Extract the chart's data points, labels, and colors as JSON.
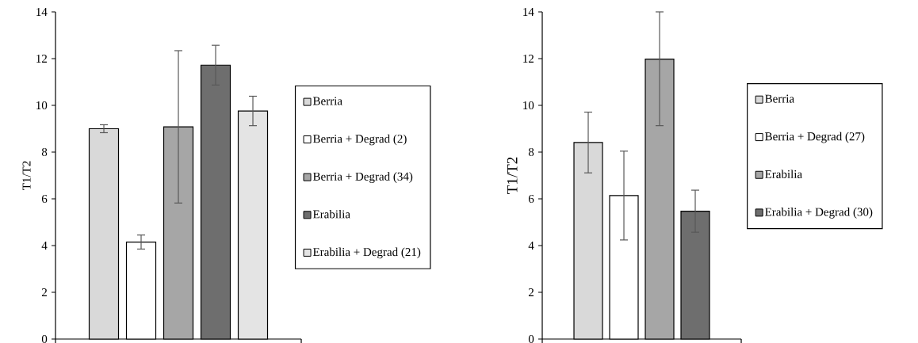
{
  "chart_data": [
    {
      "type": "bar",
      "ylabel": "T1/T2",
      "categories": [
        null
      ],
      "ylim": [
        0,
        14
      ],
      "yticks": [
        0,
        2,
        4,
        6,
        8,
        10,
        12,
        14
      ],
      "grid": false,
      "legend": "right",
      "tick_labels": "y",
      "series": [
        {
          "name": "Berria",
          "color": "#d9d9d9",
          "values": [
            9.0
          ],
          "errors": [
            0.17
          ]
        },
        {
          "name": "Berria + Degrad (2)",
          "color": "#ffffff",
          "values": [
            4.15
          ],
          "errors": [
            0.3
          ]
        },
        {
          "name": "Berria + Degrad (34)",
          "color": "#a6a6a6",
          "values": [
            9.08
          ],
          "errors": [
            3.26
          ]
        },
        {
          "name": "Erabilia",
          "color": "#6e6e6e",
          "values": [
            11.72
          ],
          "errors": [
            0.85
          ]
        },
        {
          "name": "Erabilia + Degrad (21)",
          "color": "#e4e4e4",
          "values": [
            9.76
          ],
          "errors": [
            0.63
          ]
        }
      ]
    },
    {
      "type": "bar",
      "ylabel": "T1/T2",
      "categories": [
        null
      ],
      "ylim": [
        0,
        14
      ],
      "yticks": [
        0,
        2,
        4,
        6,
        8,
        10,
        12,
        14
      ],
      "grid": false,
      "legend": "right",
      "tick_labels": "y",
      "series": [
        {
          "name": "Berria",
          "color": "#d9d9d9",
          "values": [
            8.41
          ],
          "errors": [
            1.3
          ]
        },
        {
          "name": "Berria + Degrad (27)",
          "color": "#ffffff",
          "values": [
            6.14
          ],
          "errors": [
            1.9
          ]
        },
        {
          "name": "Erabilia",
          "color": "#a6a6a6",
          "values": [
            11.98
          ],
          "errors": [
            [
              9.13,
              14
            ]
          ]
        },
        {
          "name": "Erabilia + Degrad (30)",
          "color": "#6e6e6e",
          "values": [
            5.47
          ],
          "errors": [
            0.9
          ]
        }
      ]
    }
  ]
}
